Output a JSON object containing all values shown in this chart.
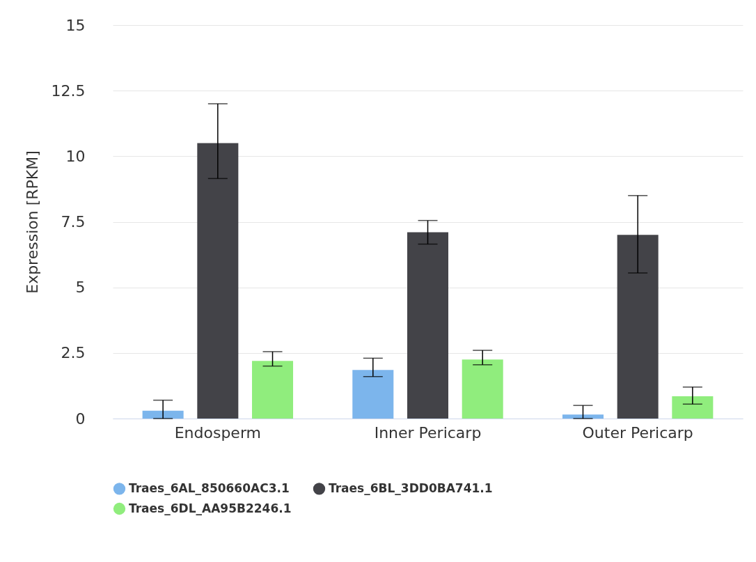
{
  "chart_data": {
    "type": "bar",
    "ylabel": "Expression [RPKM]",
    "categories": [
      "Endosperm",
      "Inner Pericarp",
      "Outer Pericarp"
    ],
    "series": [
      {
        "name": "Traes_6AL_850660AC3.1",
        "color": "#7cb5ec",
        "values": [
          0.3,
          1.85,
          0.15
        ],
        "errors": [
          [
            0,
            0.7
          ],
          [
            1.6,
            2.3
          ],
          [
            0,
            0.5
          ]
        ]
      },
      {
        "name": "Traes_6BL_3DD0BA741.1",
        "color": "#434348",
        "values": [
          10.5,
          7.1,
          7.0
        ],
        "errors": [
          [
            9.15,
            12
          ],
          [
            6.65,
            7.55
          ],
          [
            5.55,
            8.5
          ]
        ]
      },
      {
        "name": "Traes_6DL_AA95B2246.1",
        "color": "#90ed7d",
        "values": [
          2.2,
          2.25,
          0.85
        ],
        "errors": [
          [
            2.0,
            2.55
          ],
          [
            2.05,
            2.6
          ],
          [
            0.55,
            1.2
          ]
        ]
      }
    ],
    "ylim": [
      0,
      15
    ],
    "yticks": [
      0,
      2.5,
      5,
      7.5,
      10,
      12.5,
      15
    ],
    "grid": "y",
    "legend": "bottom"
  }
}
